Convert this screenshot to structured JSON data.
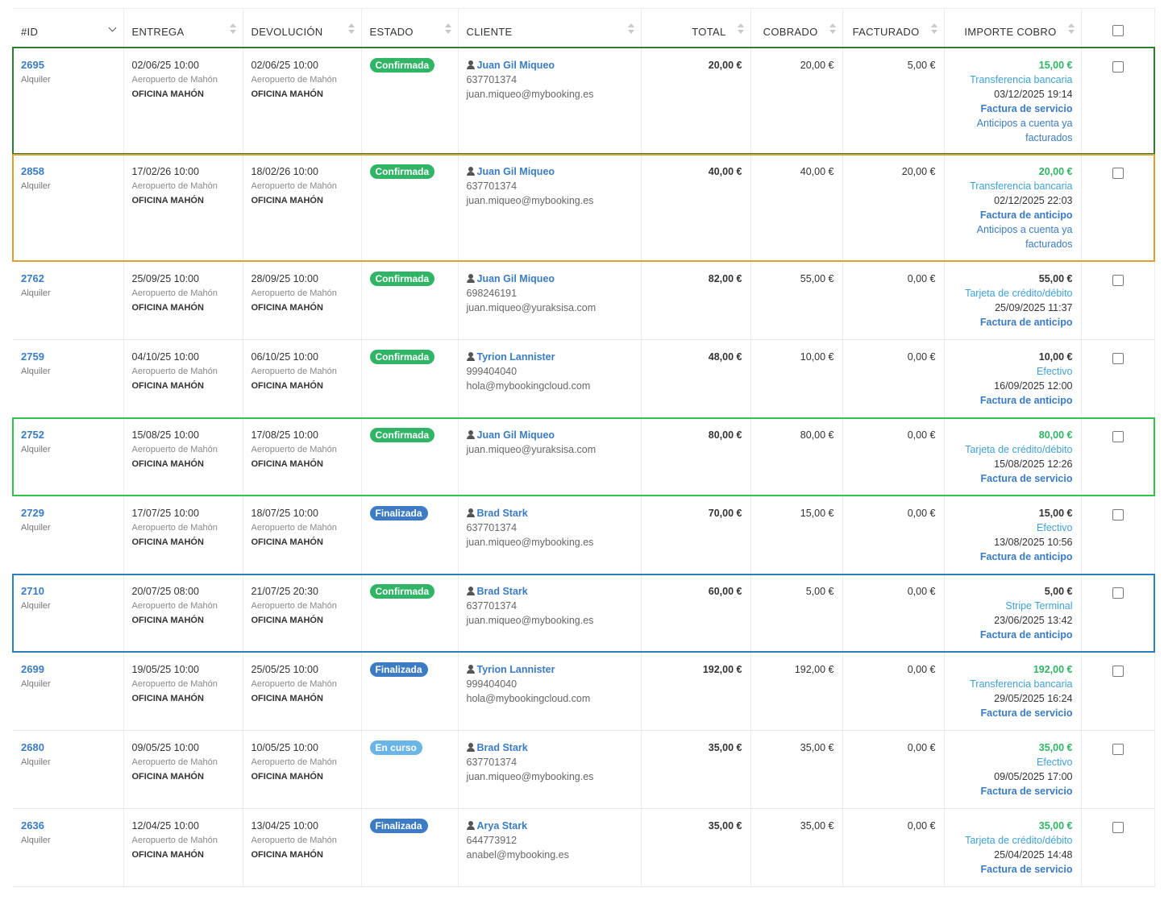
{
  "columns": {
    "id": "#ID",
    "entrega": "ENTREGA",
    "devolucion": "DEVOLUCIÓN",
    "estado": "ESTADO",
    "cliente": "CLIENTE",
    "total": "TOTAL",
    "cobrado": "COBRADO",
    "facturado": "FACTURADO",
    "importe": "IMPORTE COBRO"
  },
  "colors": {
    "highlight_dark_green": "#2e7d32",
    "highlight_orange": "#e0a030",
    "highlight_green": "#33c24d",
    "highlight_blue": "#2a7fc1",
    "badge_confirmada": "#2fb565",
    "badge_finalizada": "#3d7cc4",
    "badge_encurso": "#6ab4e6"
  },
  "rows": [
    {
      "id": "2695",
      "type": "Alquiler",
      "entrega_date": "02/06/25 10:00",
      "entrega_loc": "Aeropuerto de Mahón",
      "entrega_office": "OFICINA MAHÓN",
      "dev_date": "02/06/25 10:00",
      "dev_loc": "Aeropuerto de Mahón",
      "dev_office": "OFICINA MAHÓN",
      "estado": "Confirmada",
      "cliente": "Juan Gil Miqueo",
      "phone": "637701374",
      "email": "juan.miqueo@mybooking.es",
      "total": "20,00 €",
      "cobrado": "20,00 €",
      "facturado": "5,00 €",
      "imp_amount": "15,00 €",
      "imp_method": "Transferencia bancaria",
      "imp_date": "03/12/2025 19:14",
      "imp_invoice": "Factura de servicio",
      "imp_note": "Anticipos a cuenta ya facturados"
    },
    {
      "id": "2858",
      "type": "Alquiler",
      "entrega_date": "17/02/26 10:00",
      "entrega_loc": "Aeropuerto de Mahón",
      "entrega_office": "OFICINA MAHÓN",
      "dev_date": "18/02/26 10:00",
      "dev_loc": "Aeropuerto de Mahón",
      "dev_office": "OFICINA MAHÓN",
      "estado": "Confirmada",
      "cliente": "Juan Gil Miqueo",
      "phone": "637701374",
      "email": "juan.miqueo@mybooking.es",
      "total": "40,00 €",
      "cobrado": "40,00 €",
      "facturado": "20,00 €",
      "imp_amount": "20,00 €",
      "imp_method": "Transferencia bancaria",
      "imp_date": "02/12/2025 22:03",
      "imp_invoice": "Factura de anticipo",
      "imp_note": "Anticipos a cuenta ya facturados"
    },
    {
      "id": "2762",
      "type": "Alquiler",
      "entrega_date": "25/09/25 10:00",
      "entrega_loc": "Aeropuerto de Mahón",
      "entrega_office": "OFICINA MAHÓN",
      "dev_date": "28/09/25 10:00",
      "dev_loc": "Aeropuerto de Mahón",
      "dev_office": "OFICINA MAHÓN",
      "estado": "Confirmada",
      "cliente": "Juan Gil Miqueo",
      "phone": "698246191",
      "email": "juan.miqueo@yuraksisa.com",
      "total": "82,00 €",
      "cobrado": "55,00 €",
      "facturado": "0,00 €",
      "imp_amount": "55,00 €",
      "imp_method": "Tarjeta de crédito/débito",
      "imp_date": "25/09/2025 11:37",
      "imp_invoice": "Factura de anticipo",
      "imp_note": ""
    },
    {
      "id": "2759",
      "type": "Alquiler",
      "entrega_date": "04/10/25 10:00",
      "entrega_loc": "Aeropuerto de Mahón",
      "entrega_office": "OFICINA MAHÓN",
      "dev_date": "06/10/25 10:00",
      "dev_loc": "Aeropuerto de Mahón",
      "dev_office": "OFICINA MAHÓN",
      "estado": "Confirmada",
      "cliente": "Tyrion Lannister",
      "phone": "999404040",
      "email": "hola@mybookingcloud.com",
      "total": "48,00 €",
      "cobrado": "10,00 €",
      "facturado": "0,00 €",
      "imp_amount": "10,00 €",
      "imp_method": "Efectivo",
      "imp_date": "16/09/2025 12:00",
      "imp_invoice": "Factura de anticipo",
      "imp_note": ""
    },
    {
      "id": "2752",
      "type": "Alquiler",
      "entrega_date": "15/08/25 10:00",
      "entrega_loc": "Aeropuerto de Mahón",
      "entrega_office": "OFICINA MAHÓN",
      "dev_date": "17/08/25 10:00",
      "dev_loc": "Aeropuerto de Mahón",
      "dev_office": "OFICINA MAHÓN",
      "estado": "Confirmada",
      "cliente": "Juan Gil Miqueo",
      "phone": "",
      "email": "juan.miqueo@yuraksisa.com",
      "total": "80,00 €",
      "cobrado": "80,00 €",
      "facturado": "0,00 €",
      "imp_amount": "80,00 €",
      "imp_method": "Tarjeta de crédito/débito",
      "imp_date": "15/08/2025 12:26",
      "imp_invoice": "Factura de servicio",
      "imp_note": ""
    },
    {
      "id": "2729",
      "type": "Alquiler",
      "entrega_date": "17/07/25 10:00",
      "entrega_loc": "Aeropuerto de Mahón",
      "entrega_office": "OFICINA MAHÓN",
      "dev_date": "18/07/25 10:00",
      "dev_loc": "Aeropuerto de Mahón",
      "dev_office": "OFICINA MAHÓN",
      "estado": "Finalizada",
      "cliente": "Brad Stark",
      "phone": "637701374",
      "email": "juan.miqueo@mybooking.es",
      "total": "70,00 €",
      "cobrado": "15,00 €",
      "facturado": "0,00 €",
      "imp_amount": "15,00 €",
      "imp_method": "Efectivo",
      "imp_date": "13/08/2025 10:56",
      "imp_invoice": "Factura de anticipo",
      "imp_note": ""
    },
    {
      "id": "2710",
      "type": "Alquiler",
      "entrega_date": "20/07/25 08:00",
      "entrega_loc": "Aeropuerto de Mahón",
      "entrega_office": "OFICINA MAHÓN",
      "dev_date": "21/07/25 20:30",
      "dev_loc": "Aeropuerto de Mahón",
      "dev_office": "OFICINA MAHÓN",
      "estado": "Confirmada",
      "cliente": "Brad Stark",
      "phone": "637701374",
      "email": "juan.miqueo@mybooking.es",
      "total": "60,00 €",
      "cobrado": "5,00 €",
      "facturado": "0,00 €",
      "imp_amount": "5,00 €",
      "imp_method": "Stripe Terminal",
      "imp_date": "23/06/2025 13:42",
      "imp_invoice": "Factura de anticipo",
      "imp_note": ""
    },
    {
      "id": "2699",
      "type": "Alquiler",
      "entrega_date": "19/05/25 10:00",
      "entrega_loc": "Aeropuerto de Mahón",
      "entrega_office": "OFICINA MAHÓN",
      "dev_date": "25/05/25 10:00",
      "dev_loc": "Aeropuerto de Mahón",
      "dev_office": "OFICINA MAHÓN",
      "estado": "Finalizada",
      "cliente": "Tyrion Lannister",
      "phone": "999404040",
      "email": "hola@mybookingcloud.com",
      "total": "192,00 €",
      "cobrado": "192,00 €",
      "facturado": "0,00 €",
      "imp_amount": "192,00 €",
      "imp_method": "Transferencia bancaria",
      "imp_date": "29/05/2025 16:24",
      "imp_invoice": "Factura de servicio",
      "imp_note": ""
    },
    {
      "id": "2680",
      "type": "Alquiler",
      "entrega_date": "09/05/25 10:00",
      "entrega_loc": "Aeropuerto de Mahón",
      "entrega_office": "OFICINA MAHÓN",
      "dev_date": "10/05/25 10:00",
      "dev_loc": "Aeropuerto de Mahón",
      "dev_office": "OFICINA MAHÓN",
      "estado": "En curso",
      "cliente": "Brad Stark",
      "phone": "637701374",
      "email": "juan.miqueo@mybooking.es",
      "total": "35,00 €",
      "cobrado": "35,00 €",
      "facturado": "0,00 €",
      "imp_amount": "35,00 €",
      "imp_method": "Efectivo",
      "imp_date": "09/05/2025 17:00",
      "imp_invoice": "Factura de servicio",
      "imp_note": ""
    },
    {
      "id": "2636",
      "type": "Alquiler",
      "entrega_date": "12/04/25 10:00",
      "entrega_loc": "Aeropuerto de Mahón",
      "entrega_office": "OFICINA MAHÓN",
      "dev_date": "13/04/25 10:00",
      "dev_loc": "Aeropuerto de Mahón",
      "dev_office": "OFICINA MAHÓN",
      "estado": "Finalizada",
      "cliente": "Arya Stark",
      "phone": "644773912",
      "email": "anabel@mybooking.es",
      "total": "35,00 €",
      "cobrado": "35,00 €",
      "facturado": "0,00 €",
      "imp_amount": "35,00 €",
      "imp_method": "Tarjeta de crédito/débito",
      "imp_date": "25/04/2025 14:48",
      "imp_invoice": "Factura de servicio",
      "imp_note": ""
    }
  ]
}
